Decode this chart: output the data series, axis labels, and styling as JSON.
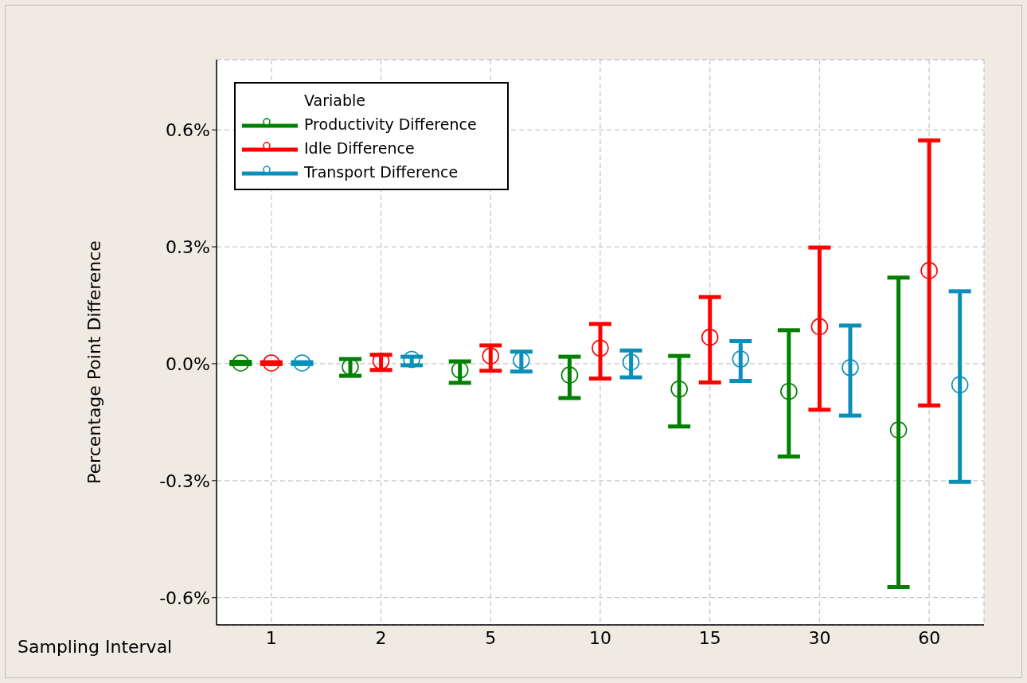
{
  "chart_data": {
    "type": "scatter",
    "xlabel": "Sampling Interval",
    "ylabel": "Percentage Point Difference",
    "legend_title": "Variable",
    "categories": [
      "1",
      "2",
      "5",
      "10",
      "15",
      "30",
      "60"
    ],
    "series": [
      {
        "name": "Productivity Difference",
        "color": "#008000",
        "values": [
          0.002,
          -0.008,
          -0.016,
          -0.029,
          -0.065,
          -0.071,
          -0.17
        ],
        "errors": [
          [
            -0.001,
            0.005
          ],
          [
            -0.031,
            0.012
          ],
          [
            -0.049,
            0.006
          ],
          [
            -0.088,
            0.018
          ],
          [
            -0.161,
            0.02
          ],
          [
            -0.238,
            0.086
          ],
          [
            -0.573,
            0.221
          ]
        ]
      },
      {
        "name": "Idle Difference",
        "color": "#ff0000",
        "values": [
          0.002,
          0.007,
          0.02,
          0.04,
          0.068,
          0.095,
          0.239
        ],
        "errors": [
          [
            -0.001,
            0.004
          ],
          [
            -0.016,
            0.023
          ],
          [
            -0.018,
            0.047
          ],
          [
            -0.038,
            0.102
          ],
          [
            -0.048,
            0.171
          ],
          [
            -0.118,
            0.298
          ],
          [
            -0.107,
            0.573
          ]
        ]
      },
      {
        "name": "Transport Difference",
        "color": "#0a8fba",
        "values": [
          0.002,
          0.011,
          0.009,
          0.004,
          0.012,
          -0.01,
          -0.054
        ],
        "errors": [
          [
            -0.001,
            0.004
          ],
          [
            -0.004,
            0.018
          ],
          [
            -0.02,
            0.031
          ],
          [
            -0.035,
            0.034
          ],
          [
            -0.044,
            0.058
          ],
          [
            -0.133,
            0.098
          ],
          [
            -0.303,
            0.186
          ]
        ]
      }
    ],
    "ylim": [
      -0.67,
      0.78
    ],
    "yticks": [
      {
        "value": -0.6,
        "label": "-0.6%"
      },
      {
        "value": -0.3,
        "label": "-0.3%"
      },
      {
        "value": 0.0,
        "label": "0.0%"
      },
      {
        "value": 0.3,
        "label": "0.3%"
      },
      {
        "value": 0.6,
        "label": "0.6%"
      }
    ],
    "grid": true,
    "legend": "top left",
    "marker": "circle"
  }
}
